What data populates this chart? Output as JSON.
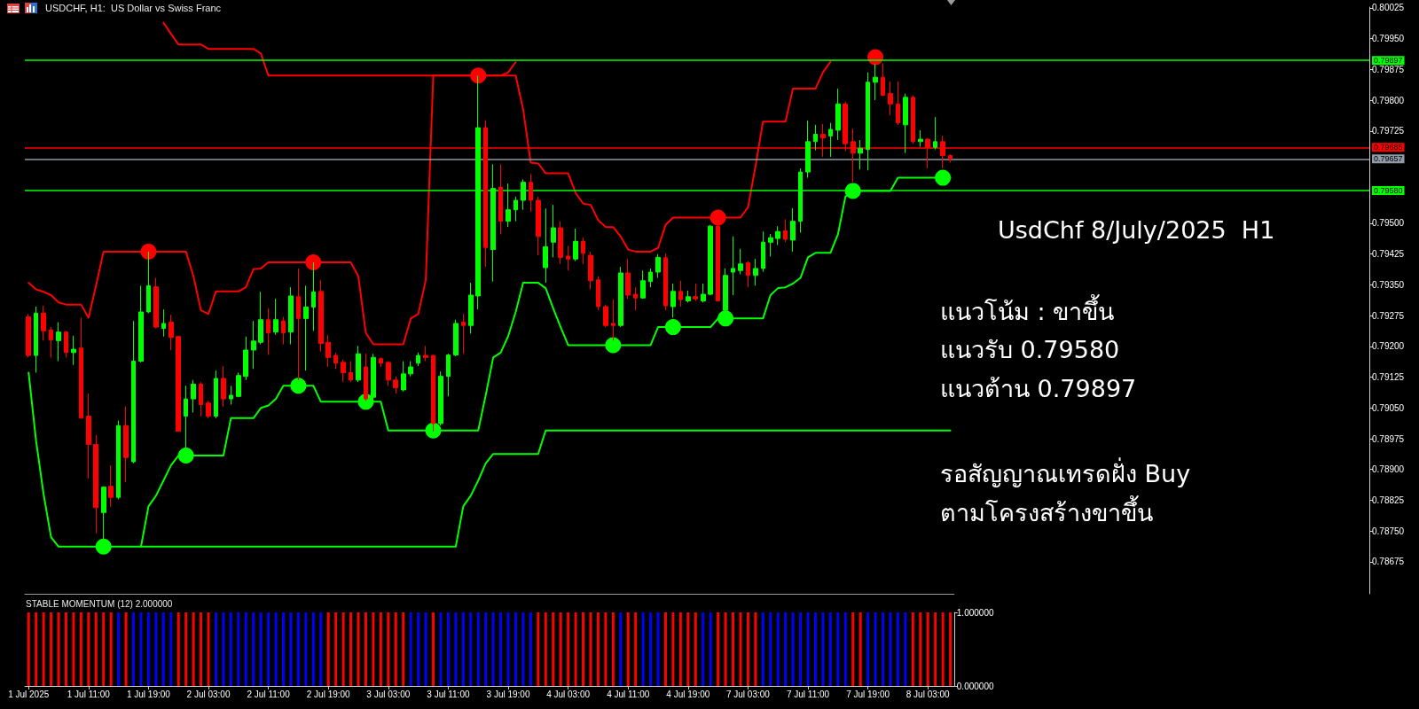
{
  "chart_data": [
    {
      "type": "candlestick",
      "title": "USDCHF, H1:  US Dollar vs Swiss Franc",
      "categories": [
        null,
        null,
        null,
        null,
        null,
        null,
        null,
        null,
        null,
        null,
        null,
        null,
        null,
        null,
        null,
        null,
        null,
        null,
        null,
        null,
        null,
        null,
        null,
        null,
        null,
        null,
        null,
        null,
        null,
        null,
        null,
        null,
        null,
        null,
        null,
        null,
        null,
        null,
        null,
        null,
        null,
        null,
        null,
        null,
        null,
        null,
        null,
        null,
        null,
        null,
        null,
        null,
        null,
        null,
        null,
        null,
        null,
        null,
        null,
        null,
        null,
        null,
        null,
        null,
        null,
        null,
        null,
        null,
        null,
        null,
        null,
        null,
        null,
        null,
        null,
        null,
        null,
        null,
        null,
        null,
        null,
        null,
        null,
        null,
        null,
        null,
        null,
        null,
        null,
        null,
        null,
        null,
        null,
        null,
        null,
        null,
        null,
        null,
        null,
        null,
        null,
        null,
        null,
        null,
        null,
        null,
        null,
        null,
        null,
        null,
        null,
        null,
        null,
        null,
        null,
        null,
        null,
        null,
        null,
        null,
        null,
        null,
        null,
        null
      ],
      "ohlc": [
        [
          0.79272,
          0.79279,
          0.79173,
          0.79178
        ],
        [
          0.79178,
          0.79297,
          0.79136,
          0.79281
        ],
        [
          0.79281,
          0.79299,
          0.79214,
          0.79238
        ],
        [
          0.7924,
          0.79247,
          0.79173,
          0.79216
        ],
        [
          0.79214,
          0.79259,
          0.79164,
          0.79235
        ],
        [
          0.79235,
          0.79238,
          0.79173,
          0.79185
        ],
        [
          0.79185,
          0.79226,
          0.79155,
          0.79193
        ],
        [
          0.79196,
          0.7927,
          0.79025,
          0.79025
        ],
        [
          0.7903,
          0.79085,
          0.78878,
          0.78961
        ],
        [
          0.78961,
          0.78984,
          0.78744,
          0.78807
        ],
        [
          0.78795,
          0.78859,
          0.78718,
          0.78857
        ],
        [
          0.78859,
          0.7891,
          0.78809,
          0.78832
        ],
        [
          0.78832,
          0.79019,
          0.78827,
          0.79007
        ],
        [
          0.79007,
          0.79053,
          0.78869,
          0.78929
        ],
        [
          0.78919,
          0.79262,
          0.78915,
          0.79164
        ],
        [
          0.79164,
          0.79348,
          0.79161,
          0.79284
        ],
        [
          0.79284,
          0.79431,
          0.79281,
          0.79348
        ],
        [
          0.79345,
          0.79367,
          0.79244,
          0.79247
        ],
        [
          0.79244,
          0.7929,
          0.79224,
          0.79256
        ],
        [
          0.79259,
          0.79277,
          0.79191,
          0.79222
        ],
        [
          0.79224,
          0.79226,
          0.78993,
          0.78993
        ],
        [
          0.7903,
          0.79104,
          0.78938,
          0.79072
        ],
        [
          0.79072,
          0.79118,
          0.79039,
          0.79108
        ],
        [
          0.79108,
          0.79113,
          0.7903,
          0.79058
        ],
        [
          0.79062,
          0.79067,
          0.79025,
          0.7903
        ],
        [
          0.7903,
          0.79141,
          0.79025,
          0.79122
        ],
        [
          0.79122,
          0.79152,
          0.79053,
          0.79072
        ],
        [
          0.79072,
          0.79104,
          0.79058,
          0.79081
        ],
        [
          0.79078,
          0.79136,
          0.79076,
          0.79129
        ],
        [
          0.79127,
          0.79224,
          0.79118,
          0.79191
        ],
        [
          0.79191,
          0.79262,
          0.79145,
          0.79213
        ],
        [
          0.7921,
          0.79333,
          0.79205,
          0.79265
        ],
        [
          0.79265,
          0.79293,
          0.79179,
          0.79233
        ],
        [
          0.79235,
          0.79316,
          0.79228,
          0.79265
        ],
        [
          0.79262,
          0.79272,
          0.79205,
          0.79233
        ],
        [
          0.79235,
          0.79344,
          0.79205,
          0.79323
        ],
        [
          0.79321,
          0.7939,
          0.79118,
          0.79268
        ],
        [
          0.79268,
          0.79348,
          0.79141,
          0.79296
        ],
        [
          0.79296,
          0.79405,
          0.79238,
          0.79333
        ],
        [
          0.79334,
          0.79362,
          0.79187,
          0.79207
        ],
        [
          0.7921,
          0.79228,
          0.7915,
          0.79173
        ],
        [
          0.79178,
          0.79185,
          0.79145,
          0.79159
        ],
        [
          0.79161,
          0.79168,
          0.79113,
          0.79136
        ],
        [
          0.79136,
          0.79164,
          0.79113,
          0.79118
        ],
        [
          0.79118,
          0.79201,
          0.79113,
          0.79182
        ],
        [
          0.7915,
          0.79182,
          0.79067,
          0.79072
        ],
        [
          0.79076,
          0.79182,
          0.79072,
          0.79173
        ],
        [
          0.7917,
          0.79173,
          0.7915,
          0.79159
        ],
        [
          0.79161,
          0.79164,
          0.79104,
          0.79118
        ],
        [
          0.79118,
          0.79127,
          0.79085,
          0.79099
        ],
        [
          0.79094,
          0.79164,
          0.7909,
          0.79133
        ],
        [
          0.79133,
          0.79164,
          0.79127,
          0.7915
        ],
        [
          0.79159,
          0.79185,
          0.79152,
          0.79178
        ],
        [
          0.79178,
          0.79201,
          0.79164,
          0.79173
        ],
        [
          0.79178,
          0.79179,
          0.78993,
          0.79012
        ],
        [
          0.79012,
          0.79139,
          0.79007,
          0.79127
        ],
        [
          0.79127,
          0.79182,
          0.79078,
          0.79179
        ],
        [
          0.79179,
          0.79265,
          0.79176,
          0.79256
        ],
        [
          0.79259,
          0.79279,
          0.79182,
          0.79251
        ],
        [
          0.79251,
          0.79355,
          0.79231,
          0.79325
        ],
        [
          0.79323,
          0.7986,
          0.7929,
          0.79733
        ],
        [
          0.79733,
          0.79751,
          0.79394,
          0.79441
        ],
        [
          0.79436,
          0.79644,
          0.79358,
          0.79585
        ],
        [
          0.79588,
          0.79644,
          0.79473,
          0.79505
        ],
        [
          0.79505,
          0.79597,
          0.79491,
          0.79533
        ],
        [
          0.79533,
          0.79565,
          0.79505,
          0.79556
        ],
        [
          0.79556,
          0.79607,
          0.79533,
          0.796
        ],
        [
          0.796,
          0.7962,
          0.79528,
          0.79556
        ],
        [
          0.79556,
          0.79565,
          0.79422,
          0.79468
        ],
        [
          0.79392,
          0.79536,
          0.79355,
          0.79443
        ],
        [
          0.79454,
          0.79545,
          0.79417,
          0.79489
        ],
        [
          0.79489,
          0.79505,
          0.79401,
          0.79417
        ],
        [
          0.7942,
          0.79445,
          0.79385,
          0.79413
        ],
        [
          0.79413,
          0.79487,
          0.79408,
          0.79456
        ],
        [
          0.79456,
          0.79465,
          0.79401,
          0.79427
        ],
        [
          0.79422,
          0.79431,
          0.79339,
          0.7936
        ],
        [
          0.79362,
          0.79371,
          0.79288,
          0.79297
        ],
        [
          0.79297,
          0.79302,
          0.79247,
          0.79251
        ],
        [
          0.79256,
          0.79314,
          0.79214,
          0.79251
        ],
        [
          0.79251,
          0.79394,
          0.79247,
          0.79379
        ],
        [
          0.79379,
          0.79413,
          0.79316,
          0.79325
        ],
        [
          0.79327,
          0.79344,
          0.79288,
          0.79318
        ],
        [
          0.79318,
          0.79385,
          0.79316,
          0.7936
        ],
        [
          0.79358,
          0.7939,
          0.79344,
          0.79381
        ],
        [
          0.79381,
          0.79425,
          0.79367,
          0.79417
        ],
        [
          0.79416,
          0.79427,
          0.79288,
          0.79299
        ],
        [
          0.79297,
          0.79353,
          0.7927,
          0.79334
        ],
        [
          0.79334,
          0.7936,
          0.79297,
          0.79314
        ],
        [
          0.79311,
          0.79336,
          0.79307,
          0.79321
        ],
        [
          0.79321,
          0.79353,
          0.79311,
          0.79316
        ],
        [
          0.79311,
          0.79353,
          0.79307,
          0.79327
        ],
        [
          0.79327,
          0.79496,
          0.79325,
          0.79493
        ],
        [
          0.79493,
          0.79514,
          0.79309,
          0.79311
        ],
        [
          0.79288,
          0.7939,
          0.7927,
          0.79373
        ],
        [
          0.79381,
          0.79468,
          0.79325,
          0.7939
        ],
        [
          0.79385,
          0.79438,
          0.79376,
          0.79401
        ],
        [
          0.79404,
          0.79408,
          0.79344,
          0.79373
        ],
        [
          0.79373,
          0.79413,
          0.79348,
          0.7939
        ],
        [
          0.7939,
          0.7948,
          0.79382,
          0.79454
        ],
        [
          0.79454,
          0.79474,
          0.79419,
          0.79465
        ],
        [
          0.79463,
          0.79493,
          0.79447,
          0.7948
        ],
        [
          0.79482,
          0.7951,
          0.79454,
          0.79461
        ],
        [
          0.79459,
          0.79537,
          0.79431,
          0.79505
        ],
        [
          0.79505,
          0.79634,
          0.79477,
          0.79625
        ],
        [
          0.79625,
          0.7975,
          0.79611,
          0.79699
        ],
        [
          0.79699,
          0.7974,
          0.79678,
          0.79717
        ],
        [
          0.79717,
          0.79742,
          0.79662,
          0.79708
        ],
        [
          0.79713,
          0.79745,
          0.79662,
          0.79729
        ],
        [
          0.79727,
          0.79828,
          0.79703,
          0.79791
        ],
        [
          0.79791,
          0.79797,
          0.79676,
          0.79694
        ],
        [
          0.79699,
          0.79731,
          0.796,
          0.79671
        ],
        [
          0.79671,
          0.79703,
          0.79631,
          0.79683
        ],
        [
          0.7968,
          0.79868,
          0.79629,
          0.79844
        ],
        [
          0.79844,
          0.79888,
          0.798,
          0.79856
        ],
        [
          0.79856,
          0.7989,
          0.7981,
          0.79812
        ],
        [
          0.79816,
          0.79846,
          0.79763,
          0.79791
        ],
        [
          0.79791,
          0.79846,
          0.7974,
          0.79745
        ],
        [
          0.7974,
          0.79816,
          0.79671,
          0.79807
        ],
        [
          0.79807,
          0.79812,
          0.79694,
          0.79699
        ],
        [
          0.79699,
          0.79727,
          0.79687,
          0.79705
        ],
        [
          0.79705,
          0.79708,
          0.79634,
          0.79685
        ],
        [
          0.79685,
          0.79759,
          0.7968,
          0.79699
        ],
        [
          0.79699,
          0.79713,
          0.79634,
          0.79665
        ],
        [
          0.79665,
          0.79668,
          0.79648,
          0.79657
        ]
      ],
      "colors": [
        "#ff0000",
        "#00ff00",
        "#ff0000",
        "#ff0000",
        "#00ff00",
        "#ff0000",
        "#00ff00",
        "#ff0000",
        "#ff0000",
        "#ff0000",
        "#00ff00",
        "#ff0000",
        "#00ff00",
        "#ff0000",
        "#00ff00",
        "#00ff00",
        "#00ff00",
        "#ff0000",
        "#00ff00",
        "#ff0000",
        "#ff0000",
        "#00ff00",
        "#00ff00",
        "#ff0000",
        "#ff0000",
        "#00ff00",
        "#ff0000",
        "#00ff00",
        "#00ff00",
        "#00ff00",
        "#00ff00",
        "#00ff00",
        "#ff0000",
        "#00ff00",
        "#ff0000",
        "#00ff00",
        "#ff0000",
        "#00ff00",
        "#00ff00",
        "#ff0000",
        "#ff0000",
        "#ff0000",
        "#ff0000",
        "#ff0000",
        "#00ff00",
        "#ff0000",
        "#00ff00",
        "#ff0000",
        "#ff0000",
        "#ff0000",
        "#00ff00",
        "#00ff00",
        "#00ff00",
        "#ff0000",
        "#ff0000",
        "#00ff00",
        "#00ff00",
        "#00ff00",
        "#ff0000",
        "#00ff00",
        "#00ff00",
        "#ff0000",
        "#00ff00",
        "#ff0000",
        "#00ff00",
        "#00ff00",
        "#00ff00",
        "#ff0000",
        "#ff0000",
        "#00ff00",
        "#00ff00",
        "#ff0000",
        "#ff0000",
        "#00ff00",
        "#ff0000",
        "#ff0000",
        "#ff0000",
        "#ff0000",
        "#ff0000",
        "#00ff00",
        "#ff0000",
        "#ff0000",
        "#00ff00",
        "#00ff00",
        "#00ff00",
        "#ff0000",
        "#00ff00",
        "#ff0000",
        "#00ff00",
        "#ff0000",
        "#00ff00",
        "#00ff00",
        "#ff0000",
        "#00ff00",
        "#00ff00",
        "#00ff00",
        "#ff0000",
        "#00ff00",
        "#00ff00",
        "#00ff00",
        "#00ff00",
        "#ff0000",
        "#00ff00",
        "#00ff00",
        "#00ff00",
        "#00ff00",
        "#ff0000",
        "#00ff00",
        "#00ff00",
        "#ff0000",
        "#ff0000",
        "#00ff00",
        "#00ff00",
        "#00ff00",
        "#ff0000",
        "#ff0000",
        "#ff0000",
        "#00ff00",
        "#ff0000",
        "#00ff00",
        "#ff0000",
        "#00ff00",
        "#ff0000",
        "#ff0000"
      ],
      "series": [
        {
          "type": "line",
          "color": "#ff0000",
          "values": [
            null,
            null,
            null,
            null,
            null,
            null,
            null,
            null,
            null,
            null,
            null,
            null,
            null,
            null,
            null,
            null,
            null,
            null,
            0.79989,
            0.79962,
            0.79936,
            0.79936,
            0.79936,
            0.79936,
            0.79925,
            0.79925,
            0.79925,
            0.79925,
            0.79925,
            0.79925,
            0.79925,
            0.79914,
            0.7986,
            0.7986,
            0.7986,
            0.7986,
            0.7986,
            0.7986,
            0.7986,
            0.7986,
            0.7986,
            0.7986,
            0.7986,
            0.7986,
            0.7986,
            0.7986,
            0.7986,
            0.7986,
            0.7986,
            0.7986,
            0.7986,
            0.7986,
            0.7986,
            0.7986,
            0.7986,
            0.7986,
            0.7986,
            0.7986,
            0.7986,
            0.7986,
            0.7986,
            0.7986,
            0.7986,
            0.7986,
            0.79868,
            0.79893,
            null,
            null,
            null,
            null,
            null,
            null,
            null,
            null,
            null,
            null,
            null,
            null,
            null,
            null,
            null,
            null,
            null,
            null,
            null,
            null,
            null,
            null,
            null,
            null,
            null,
            null,
            null,
            null,
            null,
            null,
            null,
            null,
            null,
            null,
            null,
            null,
            null,
            null,
            null,
            null,
            null,
            null,
            null,
            null,
            null,
            null,
            null,
            null,
            null,
            null,
            null,
            null,
            null,
            null,
            null,
            null,
            null,
            null
          ]
        },
        {
          "type": "line",
          "color": "#ff0000",
          "values": [
            0.79355,
            0.79339,
            0.79333,
            0.79325,
            0.79307,
            0.79302,
            0.79302,
            0.79302,
            0.7927,
            0.79348,
            0.79431,
            0.79431,
            0.79431,
            0.79431,
            0.79431,
            0.79431,
            0.79431,
            0.79431,
            0.79431,
            0.79431,
            0.79431,
            0.79431,
            0.79371,
            0.79288,
            0.79279,
            0.79334,
            0.79334,
            0.79334,
            0.79334,
            0.79344,
            0.79388,
            0.7939,
            0.79405,
            0.79405,
            0.79405,
            0.79405,
            0.79405,
            0.79405,
            0.79405,
            0.79405,
            0.79405,
            0.79405,
            0.79405,
            0.79405,
            0.79371,
            0.79233,
            0.79205,
            0.79205,
            0.79205,
            0.79205,
            0.79205,
            0.79268,
            0.79279,
            0.79362,
            0.7986,
            0.7986,
            0.7986,
            0.7986,
            0.7986,
            0.7986,
            0.7986,
            0.7986,
            0.7986,
            0.7986,
            0.7986,
            0.7986,
            0.79777,
            0.79648,
            0.79646,
            0.79622,
            0.79622,
            0.79622,
            0.79622,
            0.79574,
            0.79548,
            0.79545,
            0.79508,
            0.79491,
            0.79491,
            0.79468,
            0.79436,
            0.79431,
            0.79431,
            0.79431,
            0.7944,
            0.79496,
            0.79514,
            0.79514,
            0.79514,
            0.79514,
            0.79514,
            0.79514,
            0.79514,
            0.79514,
            0.79514,
            0.79514,
            0.79539,
            0.79639,
            0.79748,
            0.79748,
            0.79748,
            0.79748,
            0.79828,
            0.79828,
            0.79828,
            0.79828,
            0.79868,
            0.79894,
            null,
            null,
            null,
            null,
            null,
            null,
            null,
            null,
            null,
            null,
            null,
            null,
            null,
            null,
            null,
            null
          ]
        },
        {
          "type": "line",
          "color": "#00ff00",
          "values": [
            0.79136,
            0.7897,
            0.7884,
            0.78735,
            0.78712,
            0.78712,
            0.78712,
            0.78712,
            0.78712,
            0.78712,
            0.78712,
            0.78712,
            0.78712,
            0.78712,
            0.78712,
            0.78712,
            0.7881,
            0.78836,
            0.78873,
            0.7891,
            0.78934,
            0.78934,
            0.78934,
            0.78934,
            0.78934,
            0.78934,
            0.78934,
            0.79025,
            0.79025,
            0.79025,
            0.79025,
            0.7905,
            0.79056,
            0.79072,
            0.79104,
            0.79104,
            0.79104,
            0.79104,
            0.79104,
            0.79065,
            0.79065,
            0.79065,
            0.79065,
            0.79065,
            0.79065,
            0.79065,
            0.79065,
            0.79065,
            0.78995,
            0.78995,
            0.78995,
            0.78995,
            0.78995,
            0.78995,
            0.78995,
            0.78995,
            0.78995,
            0.78995,
            0.78995,
            0.78995,
            0.78995,
            0.79081,
            0.79173,
            0.79185,
            0.79225,
            0.79284,
            0.79355,
            0.79355,
            0.79355,
            0.79342,
            0.79293,
            0.79247,
            0.79203,
            0.79203,
            0.79203,
            0.79203,
            0.79203,
            0.79203,
            0.79203,
            0.79203,
            0.79203,
            0.79203,
            0.79203,
            0.79203,
            0.79247,
            0.79247,
            0.79247,
            0.79247,
            0.79247,
            0.79247,
            0.79247,
            0.79247,
            0.79268,
            0.79268,
            0.79268,
            0.79268,
            0.79268,
            0.79268,
            0.79268,
            0.79325,
            0.79342,
            0.79344,
            0.79353,
            0.79367,
            0.79417,
            0.79428,
            0.79428,
            0.79428,
            0.79473,
            0.79565,
            0.79579,
            0.79579,
            0.79579,
            0.79579,
            0.79579,
            0.79579,
            0.79611,
            0.79611,
            0.79611,
            0.79611,
            0.79611,
            0.79611,
            0.79611,
            0.79611
          ]
        },
        {
          "type": "line",
          "color": "#00ff00",
          "values": [
            null,
            null,
            null,
            null,
            null,
            null,
            null,
            null,
            null,
            null,
            null,
            null,
            null,
            null,
            null,
            0.78712,
            0.78712,
            0.78712,
            0.78712,
            0.78712,
            0.78712,
            0.78712,
            0.78712,
            0.78712,
            0.78712,
            0.78712,
            0.78712,
            0.78712,
            0.78712,
            0.78712,
            0.78712,
            0.78712,
            0.78712,
            0.78712,
            0.78712,
            0.78712,
            0.78712,
            0.78712,
            0.78712,
            0.78712,
            0.78712,
            0.78712,
            0.78712,
            0.78712,
            0.78712,
            0.78712,
            0.78712,
            0.78712,
            0.78712,
            0.78712,
            0.78712,
            0.78712,
            0.78712,
            0.78712,
            0.78712,
            0.78712,
            0.78712,
            0.78712,
            0.7881,
            0.78836,
            0.78873,
            0.78915,
            0.78938,
            0.78938,
            0.78938,
            0.78938,
            0.78938,
            0.78938,
            0.78938,
            0.78995,
            0.78995,
            0.78995,
            0.78995,
            0.78995,
            0.78995,
            0.78995,
            0.78995,
            0.78995,
            0.78995,
            0.78995,
            0.78995,
            0.78995,
            0.78995,
            0.78995,
            0.78995,
            0.78995,
            0.78995,
            0.78995,
            0.78995,
            0.78995,
            0.78995,
            0.78995,
            0.78995,
            0.78995,
            0.78995,
            0.78995,
            0.78995,
            0.78995,
            0.78995,
            0.78995,
            0.78995,
            0.78995,
            0.78995,
            0.78995,
            0.78995,
            0.78995,
            0.78995,
            0.78995,
            0.78995,
            0.78995,
            0.78995,
            0.78995,
            0.78995,
            0.78995,
            0.78995,
            0.78995,
            0.78995,
            0.78995,
            0.78995,
            0.78995,
            0.78995,
            0.78995,
            0.78995,
            0.78995
          ]
        },
        {
          "type": "scatter",
          "color": "#ff0000",
          "marker": "circle",
          "values": [
            null,
            null,
            null,
            null,
            null,
            null,
            null,
            null,
            null,
            null,
            null,
            null,
            null,
            null,
            null,
            null,
            0.79431,
            null,
            null,
            null,
            null,
            null,
            null,
            null,
            null,
            null,
            null,
            null,
            null,
            null,
            null,
            null,
            null,
            null,
            null,
            null,
            null,
            null,
            0.79405,
            null,
            null,
            null,
            null,
            null,
            null,
            null,
            null,
            null,
            null,
            null,
            null,
            null,
            null,
            null,
            null,
            null,
            null,
            null,
            null,
            null,
            0.7986,
            null,
            null,
            null,
            null,
            null,
            null,
            null,
            null,
            null,
            null,
            null,
            null,
            null,
            null,
            null,
            null,
            null,
            null,
            null,
            null,
            null,
            null,
            null,
            null,
            null,
            null,
            null,
            null,
            null,
            null,
            null,
            0.79514,
            null,
            null,
            null,
            null,
            null,
            null,
            null,
            null,
            null,
            null,
            null,
            null,
            null,
            null,
            null,
            null,
            null,
            null,
            null,
            null,
            0.79905,
            null,
            null,
            null,
            null,
            null,
            null,
            null,
            null,
            null,
            null
          ]
        },
        {
          "type": "scatter",
          "color": "#00ff00",
          "marker": "circle",
          "values": [
            null,
            null,
            null,
            null,
            null,
            null,
            null,
            null,
            null,
            null,
            0.78712,
            null,
            null,
            null,
            null,
            null,
            null,
            null,
            null,
            null,
            null,
            0.78934,
            null,
            null,
            null,
            null,
            null,
            null,
            null,
            null,
            null,
            null,
            null,
            null,
            null,
            null,
            0.79104,
            null,
            null,
            null,
            null,
            null,
            null,
            null,
            null,
            0.79065,
            null,
            null,
            null,
            null,
            null,
            null,
            null,
            null,
            0.78995,
            null,
            null,
            null,
            null,
            null,
            null,
            null,
            null,
            null,
            null,
            null,
            null,
            null,
            null,
            null,
            null,
            null,
            null,
            null,
            null,
            null,
            null,
            null,
            0.79203,
            null,
            null,
            null,
            null,
            null,
            null,
            null,
            0.79247,
            null,
            null,
            null,
            null,
            null,
            null,
            0.79268,
            null,
            null,
            null,
            null,
            null,
            null,
            null,
            null,
            null,
            null,
            null,
            null,
            null,
            null,
            null,
            null,
            0.79579,
            null,
            null,
            null,
            null,
            null,
            null,
            null,
            null,
            null,
            null,
            null,
            0.79611,
            null
          ]
        }
      ],
      "ylim": [
        0.78597,
        0.80027
      ],
      "yticks": [
        0.78675,
        {
          "value": 0.7875,
          "label": "0.78750"
        },
        0.78825,
        {
          "value": 0.789,
          "label": "0.78900"
        },
        0.78975,
        {
          "value": 0.7905,
          "label": "0.79050"
        },
        0.79125,
        {
          "value": 0.792,
          "label": "0.79200"
        },
        0.79275,
        {
          "value": 0.7935,
          "label": "0.79350"
        },
        0.79425,
        {
          "value": 0.795,
          "label": "0.79500"
        },
        0.79725,
        {
          "value": 0.798,
          "label": "0.79800"
        },
        0.79875,
        {
          "value": 0.7995,
          "label": "0.79950"
        },
        0.80025
      ],
      "tick_labels": "y",
      "ref_lines": [
        {
          "axis": "y",
          "value": 0.79897,
          "label": "0.79897",
          "color": "#00ff00"
        },
        {
          "axis": "y",
          "value": 0.79685,
          "label": "0.79685",
          "color": "#ff0000"
        },
        {
          "axis": "y",
          "value": 0.79657,
          "label": "0.79657",
          "color": "#8e9aa6"
        },
        {
          "axis": "y",
          "value": 0.7958,
          "label": "0.79580",
          "color": "#00ff00"
        }
      ],
      "annotations": [
        "UsdChf 8/July/2025  H1",
        "แนวโน้ม : ขาขึ้น",
        "แนวรับ 0.79580",
        "แนวต้าน 0.79897",
        "รอสัญญาณเทรดฝั่ง Buy",
        "ตามโครงสร้างขาขึ้น"
      ]
    },
    {
      "type": "bar",
      "title": "STABLE MOMENTUM (12) 2.000000",
      "categories": [
        "1 Jul 2025",
        null,
        null,
        null,
        null,
        null,
        null,
        null,
        "1 Jul 11:00",
        null,
        null,
        null,
        null,
        null,
        null,
        null,
        "1 Jul 19:00",
        null,
        null,
        null,
        null,
        null,
        null,
        null,
        "2 Jul 03:00",
        null,
        null,
        null,
        null,
        null,
        null,
        null,
        "2 Jul 11:00",
        null,
        null,
        null,
        null,
        null,
        null,
        null,
        "2 Jul 19:00",
        null,
        null,
        null,
        null,
        null,
        null,
        null,
        "3 Jul 03:00",
        null,
        null,
        null,
        null,
        null,
        null,
        null,
        "3 Jul 11:00",
        null,
        null,
        null,
        null,
        null,
        null,
        null,
        "3 Jul 19:00",
        null,
        null,
        null,
        null,
        null,
        null,
        null,
        "4 Jul 03:00",
        null,
        null,
        null,
        null,
        null,
        null,
        null,
        "4 Jul 11:00",
        null,
        null,
        null,
        null,
        null,
        null,
        null,
        "4 Jul 19:00",
        null,
        null,
        null,
        null,
        null,
        null,
        null,
        "7 Jul 03:00",
        null,
        null,
        null,
        null,
        null,
        null,
        null,
        "7 Jul 11:00",
        null,
        null,
        null,
        null,
        null,
        null,
        null,
        "7 Jul 19:00",
        null,
        null,
        null,
        null,
        null,
        null,
        null,
        "8 Jul 03:00",
        null,
        null,
        null
      ],
      "values": [
        1,
        1,
        1,
        1,
        1,
        1,
        1,
        1,
        1,
        1,
        1,
        1,
        1,
        1,
        1,
        1,
        1,
        1,
        1,
        1,
        1,
        1,
        1,
        1,
        1,
        1,
        1,
        1,
        1,
        1,
        1,
        1,
        1,
        1,
        1,
        1,
        1,
        1,
        1,
        1,
        1,
        1,
        1,
        1,
        1,
        1,
        1,
        1,
        1,
        1,
        1,
        1,
        1,
        1,
        1,
        1,
        1,
        1,
        1,
        1,
        1,
        1,
        1,
        1,
        1,
        1,
        1,
        1,
        1,
        1,
        1,
        1,
        1,
        1,
        1,
        1,
        1,
        1,
        1,
        1,
        1,
        1,
        1,
        1,
        1,
        1,
        1,
        1,
        1,
        1,
        1,
        1,
        1,
        1,
        1,
        1,
        1,
        1,
        1,
        1,
        1,
        1,
        1,
        1,
        1,
        1,
        1,
        1,
        1,
        1,
        1,
        1,
        1,
        1,
        1,
        1,
        1,
        1,
        1,
        1,
        1,
        1,
        1,
        1
      ],
      "colors": [
        "#ff0000",
        "#ff0000",
        "#ff0000",
        "#ff0000",
        "#ff0000",
        "#ff0000",
        "#ff0000",
        "#ff0000",
        "#ff0000",
        "#ff0000",
        "#ff0000",
        "#ff0000",
        "#0000ff",
        "#ff0000",
        "#0000ff",
        "#0000ff",
        "#0000ff",
        "#0000ff",
        "#0000ff",
        "#0000ff",
        "#ff0000",
        "#ff0000",
        "#ff0000",
        "#ff0000",
        "#ff0000",
        "#0000ff",
        "#0000ff",
        "#0000ff",
        "#0000ff",
        "#0000ff",
        "#0000ff",
        "#0000ff",
        "#0000ff",
        "#0000ff",
        "#0000ff",
        "#0000ff",
        "#0000ff",
        "#0000ff",
        "#0000ff",
        "#0000ff",
        "#ff0000",
        "#ff0000",
        "#ff0000",
        "#ff0000",
        "#ff0000",
        "#ff0000",
        "#ff0000",
        "#ff0000",
        "#ff0000",
        "#ff0000",
        "#ff0000",
        "#0000ff",
        "#0000ff",
        "#0000ff",
        "#ff0000",
        "#0000ff",
        "#0000ff",
        "#0000ff",
        "#0000ff",
        "#0000ff",
        "#0000ff",
        "#0000ff",
        "#0000ff",
        "#0000ff",
        "#0000ff",
        "#0000ff",
        "#0000ff",
        "#0000ff",
        "#ff0000",
        "#ff0000",
        "#ff0000",
        "#ff0000",
        "#ff0000",
        "#ff0000",
        "#ff0000",
        "#ff0000",
        "#ff0000",
        "#ff0000",
        "#ff0000",
        "#0000ff",
        "#ff0000",
        "#ff0000",
        "#0000ff",
        "#0000ff",
        "#0000ff",
        "#ff0000",
        "#ff0000",
        "#ff0000",
        "#ff0000",
        "#ff0000",
        "#0000ff",
        "#0000ff",
        "#ff0000",
        "#ff0000",
        "#ff0000",
        "#ff0000",
        "#ff0000",
        "#ff0000",
        "#0000ff",
        "#0000ff",
        "#0000ff",
        "#0000ff",
        "#0000ff",
        "#0000ff",
        "#0000ff",
        "#0000ff",
        "#0000ff",
        "#0000ff",
        "#0000ff",
        "#0000ff",
        "#ff0000",
        "#ff0000",
        "#0000ff",
        "#0000ff",
        "#0000ff",
        "#0000ff",
        "#0000ff",
        "#0000ff",
        "#ff0000",
        "#ff0000",
        "#ff0000",
        "#ff0000",
        "#ff0000",
        "#ff0000"
      ],
      "ylim": [
        0,
        1
      ],
      "yticks": [
        {
          "value": 0,
          "label": "0.000000"
        },
        {
          "value": 1,
          "label": "1.000000"
        }
      ]
    }
  ]
}
